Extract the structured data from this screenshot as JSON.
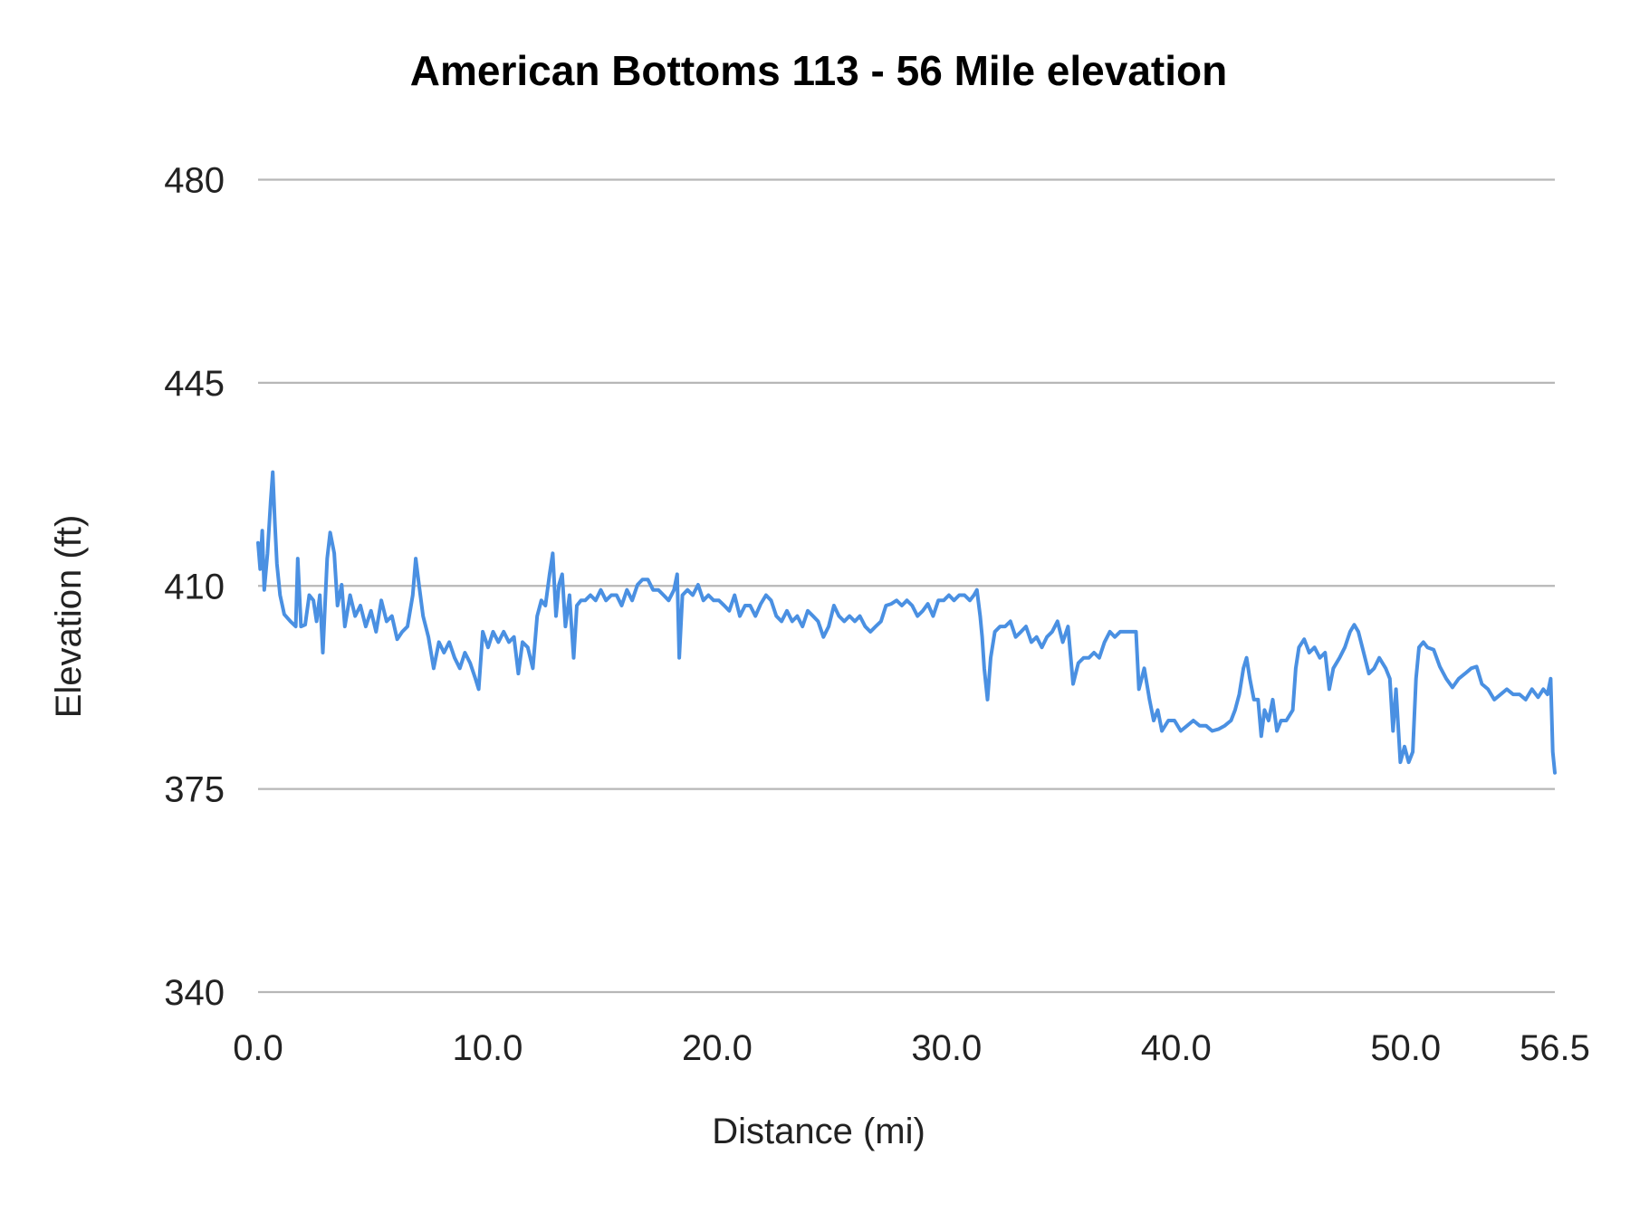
{
  "chart_data": {
    "type": "line",
    "title": "American Bottoms 113 - 56 Mile elevation",
    "xlabel": "Distance (mi)",
    "ylabel": "Elevation (ft)",
    "xlim": [
      0,
      56.5
    ],
    "ylim": [
      340,
      480
    ],
    "x_ticks": [
      "0.0",
      "10.0",
      "20.0",
      "30.0",
      "40.0",
      "50.0",
      "56.5"
    ],
    "x_tick_values": [
      0,
      10,
      20,
      30,
      40,
      50,
      56.5
    ],
    "y_ticks": [
      "340",
      "375",
      "410",
      "445",
      "480"
    ],
    "y_tick_values": [
      340,
      375,
      410,
      445,
      480
    ],
    "grid": "horizontal",
    "legend": "none",
    "line_color": "#4a90e2",
    "grid_color": "#b7b7b7",
    "series": [
      {
        "x": [
          0.0,
          0.09,
          0.18,
          0.27,
          0.41,
          0.55,
          0.64,
          0.73,
          0.82,
          0.96,
          1.14,
          1.41,
          1.64,
          1.73,
          1.87,
          2.05,
          2.23,
          2.41,
          2.55,
          2.69,
          2.82,
          3.01,
          3.14,
          3.32,
          3.46,
          3.64,
          3.78,
          4.01,
          4.23,
          4.46,
          4.69,
          4.92,
          5.14,
          5.37,
          5.6,
          5.83,
          6.06,
          6.28,
          6.51,
          6.74,
          6.87,
          7.01,
          7.19,
          7.42,
          7.65,
          7.88,
          8.1,
          8.33,
          8.56,
          8.79,
          9.01,
          9.24,
          9.47,
          9.61,
          9.79,
          10.02,
          10.24,
          10.47,
          10.7,
          10.93,
          11.15,
          11.34,
          11.52,
          11.75,
          11.97,
          12.16,
          12.34,
          12.52,
          12.7,
          12.84,
          12.98,
          13.11,
          13.25,
          13.39,
          13.57,
          13.75,
          13.89,
          14.07,
          14.25,
          14.48,
          14.71,
          14.93,
          15.16,
          15.39,
          15.62,
          15.84,
          16.07,
          16.3,
          16.53,
          16.75,
          16.98,
          17.21,
          17.44,
          17.67,
          17.89,
          18.12,
          18.26,
          18.35,
          18.49,
          18.71,
          18.94,
          19.17,
          19.4,
          19.62,
          19.85,
          20.08,
          20.31,
          20.53,
          20.76,
          20.99,
          21.22,
          21.44,
          21.67,
          21.9,
          22.13,
          22.35,
          22.58,
          22.81,
          23.04,
          23.27,
          23.49,
          23.72,
          23.95,
          24.18,
          24.4,
          24.63,
          24.86,
          25.09,
          25.31,
          25.54,
          25.77,
          26.0,
          26.22,
          26.45,
          26.68,
          26.91,
          27.14,
          27.36,
          27.59,
          27.82,
          28.05,
          28.27,
          28.5,
          28.73,
          28.96,
          29.18,
          29.41,
          29.64,
          29.87,
          30.1,
          30.32,
          30.55,
          30.78,
          31.01,
          31.19,
          31.32,
          31.46,
          31.55,
          31.64,
          31.78,
          31.92,
          32.1,
          32.33,
          32.55,
          32.78,
          33.01,
          33.24,
          33.46,
          33.69,
          33.92,
          34.15,
          34.37,
          34.6,
          34.83,
          35.06,
          35.29,
          35.51,
          35.74,
          35.97,
          36.2,
          36.42,
          36.65,
          36.88,
          37.11,
          37.33,
          37.56,
          37.79,
          38.02,
          38.25,
          38.38,
          38.61,
          38.84,
          39.02,
          39.2,
          39.38,
          39.66,
          39.93,
          40.2,
          40.48,
          40.75,
          41.02,
          41.3,
          41.57,
          41.84,
          42.12,
          42.39,
          42.57,
          42.75,
          42.93,
          43.07,
          43.21,
          43.39,
          43.57,
          43.71,
          43.85,
          44.03,
          44.21,
          44.39,
          44.57,
          44.8,
          45.08,
          45.21,
          45.35,
          45.58,
          45.8,
          46.03,
          46.26,
          46.49,
          46.67,
          46.85,
          47.12,
          47.35,
          47.58,
          47.76,
          47.94,
          48.17,
          48.4,
          48.63,
          48.85,
          49.13,
          49.31,
          49.45,
          49.58,
          49.77,
          49.95,
          50.13,
          50.31,
          50.45,
          50.58,
          50.77,
          50.95,
          51.22,
          51.49,
          51.77,
          52.04,
          52.31,
          52.59,
          52.86,
          53.09,
          53.32,
          53.59,
          53.86,
          54.14,
          54.41,
          54.68,
          54.96,
          55.23,
          55.5,
          55.77,
          56.0,
          56.18,
          56.32,
          56.41,
          56.5
        ],
        "y": [
          417.4,
          412.9,
          419.5,
          409.3,
          415.6,
          424.6,
          429.6,
          421.0,
          413.8,
          408.4,
          405.1,
          403.9,
          403.0,
          414.7,
          403.0,
          403.3,
          408.4,
          407.5,
          403.9,
          408.4,
          398.5,
          414.7,
          419.2,
          415.6,
          406.6,
          410.2,
          403.0,
          408.4,
          404.8,
          406.6,
          403.0,
          405.7,
          402.1,
          407.5,
          403.9,
          404.8,
          400.8,
          402.1,
          403.0,
          408.4,
          414.7,
          410.2,
          404.8,
          401.2,
          395.8,
          400.3,
          398.5,
          400.3,
          397.6,
          395.8,
          398.5,
          396.7,
          394.0,
          392.2,
          402.1,
          399.4,
          402.1,
          400.3,
          402.1,
          400.3,
          401.2,
          394.9,
          400.3,
          399.4,
          395.8,
          404.8,
          407.5,
          406.6,
          412.0,
          415.6,
          404.8,
          410.2,
          412.0,
          403.0,
          408.4,
          397.6,
          406.6,
          407.5,
          407.5,
          408.4,
          407.5,
          409.3,
          407.5,
          408.4,
          408.4,
          406.6,
          409.3,
          407.5,
          410.2,
          411.1,
          411.1,
          409.3,
          409.3,
          408.4,
          407.5,
          409.3,
          412.0,
          397.6,
          408.4,
          409.3,
          408.4,
          410.2,
          407.5,
          408.4,
          407.5,
          407.5,
          406.6,
          405.7,
          408.4,
          404.8,
          406.6,
          406.6,
          404.8,
          406.9,
          408.4,
          407.5,
          404.8,
          403.9,
          405.7,
          403.9,
          404.8,
          403.0,
          405.7,
          404.8,
          403.9,
          401.2,
          403.0,
          406.6,
          404.8,
          403.9,
          404.8,
          403.9,
          404.8,
          403.0,
          402.1,
          403.0,
          403.9,
          406.6,
          406.9,
          407.5,
          406.6,
          407.5,
          406.6,
          404.8,
          405.7,
          406.9,
          404.8,
          407.5,
          407.5,
          408.4,
          407.5,
          408.4,
          408.4,
          407.5,
          408.4,
          409.3,
          404.8,
          401.2,
          395.8,
          390.4,
          397.6,
          402.1,
          403.0,
          403.0,
          403.9,
          401.2,
          402.1,
          403.0,
          400.3,
          401.2,
          399.4,
          401.2,
          402.1,
          403.9,
          400.3,
          403.0,
          393.1,
          396.7,
          397.6,
          397.6,
          398.5,
          397.6,
          400.3,
          402.1,
          401.2,
          402.1,
          402.1,
          402.1,
          402.1,
          392.2,
          395.8,
          390.4,
          386.8,
          388.6,
          385.0,
          386.8,
          386.8,
          385.0,
          385.9,
          386.8,
          385.9,
          385.9,
          385.0,
          385.3,
          385.9,
          386.8,
          388.6,
          391.3,
          395.8,
          397.6,
          394.0,
          390.4,
          390.4,
          384.1,
          388.6,
          386.8,
          390.4,
          385.0,
          386.8,
          386.8,
          388.6,
          395.8,
          399.4,
          400.8,
          398.5,
          399.4,
          397.6,
          398.5,
          392.2,
          395.8,
          397.6,
          399.4,
          402.1,
          403.3,
          402.1,
          398.5,
          394.9,
          395.8,
          397.6,
          395.8,
          394.0,
          385.0,
          392.2,
          379.6,
          382.3,
          379.6,
          381.4,
          394.0,
          399.4,
          400.3,
          399.4,
          399.0,
          396.1,
          394.0,
          392.5,
          394.0,
          394.9,
          395.8,
          396.1,
          393.1,
          392.2,
          390.4,
          391.3,
          392.2,
          391.3,
          391.3,
          390.4,
          392.2,
          390.8,
          392.2,
          391.3,
          394.0,
          381.4,
          377.8
        ]
      }
    ]
  }
}
